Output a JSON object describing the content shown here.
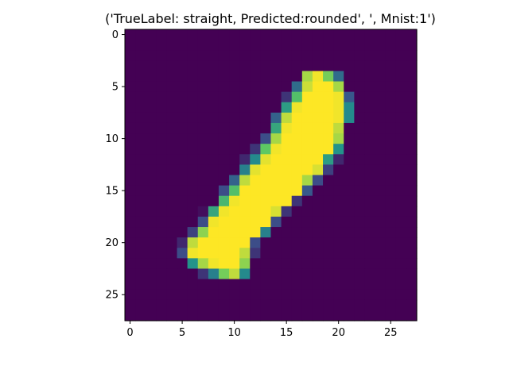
{
  "chart_data": {
    "type": "heatmap",
    "title": "('TrueLabel: straight, Predicted:rounded', ', Mnist:1')",
    "colormap": "viridis",
    "vmin": 0,
    "vmax": 255,
    "rows": 28,
    "cols": 28,
    "xlim": [
      -0.5,
      27.5
    ],
    "ylim": [
      27.5,
      -0.5
    ],
    "x_ticks": [
      0,
      5,
      10,
      15,
      20,
      25
    ],
    "y_ticks": [
      0,
      5,
      10,
      15,
      20,
      25
    ],
    "x_tick_labels": [
      "0",
      "5",
      "10",
      "15",
      "20",
      "25"
    ],
    "y_tick_labels": [
      "0",
      "5",
      "10",
      "15",
      "20",
      "25"
    ],
    "grid": false,
    "values": [
      [
        0,
        0,
        0,
        0,
        0,
        0,
        0,
        0,
        0,
        0,
        0,
        0,
        0,
        0,
        0,
        0,
        0,
        0,
        0,
        0,
        0,
        0,
        0,
        0,
        0,
        0,
        0,
        0
      ],
      [
        0,
        0,
        0,
        0,
        0,
        0,
        0,
        0,
        0,
        0,
        0,
        0,
        0,
        0,
        0,
        0,
        0,
        0,
        0,
        0,
        0,
        0,
        0,
        0,
        0,
        0,
        0,
        0
      ],
      [
        0,
        0,
        0,
        0,
        0,
        0,
        0,
        0,
        0,
        0,
        0,
        0,
        0,
        0,
        0,
        0,
        0,
        0,
        0,
        0,
        0,
        0,
        0,
        0,
        0,
        0,
        0,
        0
      ],
      [
        0,
        0,
        0,
        0,
        0,
        0,
        0,
        0,
        0,
        0,
        0,
        0,
        0,
        0,
        0,
        0,
        0,
        0,
        0,
        0,
        0,
        0,
        0,
        0,
        0,
        0,
        0,
        0
      ],
      [
        0,
        0,
        0,
        0,
        0,
        0,
        0,
        0,
        0,
        0,
        0,
        0,
        0,
        0,
        0,
        0,
        0,
        220,
        250,
        200,
        90,
        0,
        0,
        0,
        0,
        0,
        0,
        0
      ],
      [
        0,
        0,
        0,
        0,
        0,
        0,
        0,
        0,
        0,
        0,
        0,
        0,
        0,
        0,
        0,
        0,
        90,
        235,
        255,
        255,
        220,
        0,
        0,
        0,
        0,
        0,
        0,
        0
      ],
      [
        0,
        0,
        0,
        0,
        0,
        0,
        0,
        0,
        0,
        0,
        0,
        0,
        0,
        0,
        0,
        40,
        180,
        255,
        255,
        255,
        250,
        70,
        0,
        0,
        0,
        0,
        0,
        0
      ],
      [
        0,
        0,
        0,
        0,
        0,
        0,
        0,
        0,
        0,
        0,
        0,
        0,
        0,
        0,
        0,
        140,
        250,
        255,
        255,
        255,
        250,
        120,
        0,
        0,
        0,
        0,
        0,
        0
      ],
      [
        0,
        0,
        0,
        0,
        0,
        0,
        0,
        0,
        0,
        0,
        0,
        0,
        0,
        0,
        80,
        230,
        255,
        255,
        255,
        255,
        250,
        120,
        0,
        0,
        0,
        0,
        0,
        0
      ],
      [
        0,
        0,
        0,
        0,
        0,
        0,
        0,
        0,
        0,
        0,
        0,
        0,
        0,
        0,
        150,
        250,
        255,
        255,
        255,
        255,
        230,
        0,
        0,
        0,
        0,
        0,
        0,
        0
      ],
      [
        0,
        0,
        0,
        0,
        0,
        0,
        0,
        0,
        0,
        0,
        0,
        0,
        0,
        60,
        220,
        255,
        255,
        255,
        255,
        255,
        220,
        0,
        0,
        0,
        0,
        0,
        0,
        0
      ],
      [
        0,
        0,
        0,
        0,
        0,
        0,
        0,
        0,
        0,
        0,
        0,
        0,
        40,
        190,
        250,
        255,
        255,
        255,
        255,
        255,
        130,
        0,
        0,
        0,
        0,
        0,
        0,
        0
      ],
      [
        0,
        0,
        0,
        0,
        0,
        0,
        0,
        0,
        0,
        0,
        0,
        30,
        120,
        245,
        255,
        255,
        255,
        255,
        255,
        140,
        30,
        0,
        0,
        0,
        0,
        0,
        0,
        0
      ],
      [
        0,
        0,
        0,
        0,
        0,
        0,
        0,
        0,
        0,
        0,
        0,
        110,
        245,
        255,
        255,
        255,
        255,
        255,
        240,
        50,
        0,
        0,
        0,
        0,
        0,
        0,
        0,
        0
      ],
      [
        0,
        0,
        0,
        0,
        0,
        0,
        0,
        0,
        0,
        0,
        80,
        230,
        255,
        255,
        255,
        255,
        255,
        220,
        60,
        0,
        0,
        0,
        0,
        0,
        0,
        0,
        0,
        0
      ],
      [
        0,
        0,
        0,
        0,
        0,
        0,
        0,
        0,
        0,
        60,
        180,
        255,
        255,
        255,
        255,
        255,
        255,
        70,
        0,
        0,
        0,
        0,
        0,
        0,
        0,
        0,
        0,
        0
      ],
      [
        0,
        0,
        0,
        0,
        0,
        0,
        0,
        0,
        0,
        170,
        250,
        255,
        255,
        255,
        255,
        255,
        40,
        0,
        0,
        0,
        0,
        0,
        0,
        0,
        0,
        0,
        0,
        0
      ],
      [
        0,
        0,
        0,
        0,
        0,
        0,
        0,
        10,
        150,
        250,
        255,
        255,
        255,
        255,
        240,
        40,
        0,
        0,
        0,
        0,
        0,
        0,
        0,
        0,
        0,
        0,
        0,
        0
      ],
      [
        0,
        0,
        0,
        0,
        0,
        0,
        0,
        60,
        250,
        255,
        255,
        255,
        255,
        255,
        60,
        0,
        0,
        0,
        0,
        0,
        0,
        0,
        0,
        0,
        0,
        0,
        0,
        0
      ],
      [
        0,
        0,
        0,
        0,
        0,
        0,
        50,
        210,
        255,
        255,
        255,
        255,
        255,
        110,
        0,
        0,
        0,
        0,
        0,
        0,
        0,
        0,
        0,
        0,
        0,
        0,
        0,
        0
      ],
      [
        0,
        0,
        0,
        0,
        0,
        30,
        230,
        255,
        255,
        255,
        255,
        255,
        60,
        0,
        0,
        0,
        0,
        0,
        0,
        0,
        0,
        0,
        0,
        0,
        0,
        0,
        0,
        0
      ],
      [
        0,
        0,
        0,
        0,
        0,
        60,
        250,
        255,
        255,
        255,
        255,
        230,
        40,
        0,
        0,
        0,
        0,
        0,
        0,
        0,
        0,
        0,
        0,
        0,
        0,
        0,
        0,
        0
      ],
      [
        0,
        0,
        0,
        0,
        0,
        0,
        130,
        220,
        250,
        255,
        255,
        210,
        0,
        0,
        0,
        0,
        0,
        0,
        0,
        0,
        0,
        0,
        0,
        0,
        0,
        0,
        0,
        0
      ],
      [
        0,
        0,
        0,
        0,
        0,
        0,
        0,
        40,
        110,
        200,
        230,
        120,
        0,
        0,
        0,
        0,
        0,
        0,
        0,
        0,
        0,
        0,
        0,
        0,
        0,
        0,
        0,
        0
      ],
      [
        0,
        0,
        0,
        0,
        0,
        0,
        0,
        0,
        0,
        0,
        0,
        0,
        0,
        0,
        0,
        0,
        0,
        0,
        0,
        0,
        0,
        0,
        0,
        0,
        0,
        0,
        0,
        0
      ],
      [
        0,
        0,
        0,
        0,
        0,
        0,
        0,
        0,
        0,
        0,
        0,
        0,
        0,
        0,
        0,
        0,
        0,
        0,
        0,
        0,
        0,
        0,
        0,
        0,
        0,
        0,
        0,
        0
      ],
      [
        0,
        0,
        0,
        0,
        0,
        0,
        0,
        0,
        0,
        0,
        0,
        0,
        0,
        0,
        0,
        0,
        0,
        0,
        0,
        0,
        0,
        0,
        0,
        0,
        0,
        0,
        0,
        0
      ],
      [
        0,
        0,
        0,
        0,
        0,
        0,
        0,
        0,
        0,
        0,
        0,
        0,
        0,
        0,
        0,
        0,
        0,
        0,
        0,
        0,
        0,
        0,
        0,
        0,
        0,
        0,
        0,
        0
      ]
    ]
  }
}
